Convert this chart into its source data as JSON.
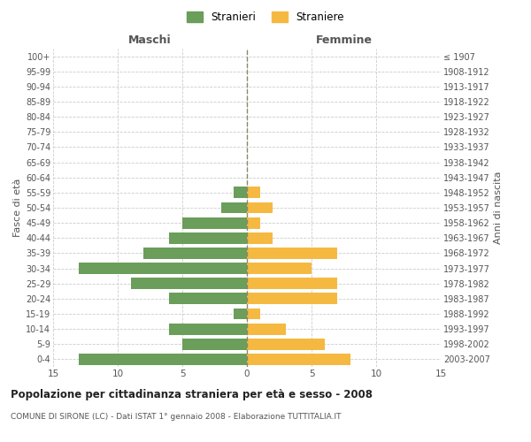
{
  "age_groups": [
    "0-4",
    "5-9",
    "10-14",
    "15-19",
    "20-24",
    "25-29",
    "30-34",
    "35-39",
    "40-44",
    "45-49",
    "50-54",
    "55-59",
    "60-64",
    "65-69",
    "70-74",
    "75-79",
    "80-84",
    "85-89",
    "90-94",
    "95-99",
    "100+"
  ],
  "birth_years": [
    "2003-2007",
    "1998-2002",
    "1993-1997",
    "1988-1992",
    "1983-1987",
    "1978-1982",
    "1973-1977",
    "1968-1972",
    "1963-1967",
    "1958-1962",
    "1953-1957",
    "1948-1952",
    "1943-1947",
    "1938-1942",
    "1933-1937",
    "1928-1932",
    "1923-1927",
    "1918-1922",
    "1913-1917",
    "1908-1912",
    "≤ 1907"
  ],
  "maschi": [
    13,
    5,
    6,
    1,
    6,
    9,
    13,
    8,
    6,
    5,
    2,
    1,
    0,
    0,
    0,
    0,
    0,
    0,
    0,
    0,
    0
  ],
  "femmine": [
    8,
    6,
    3,
    1,
    7,
    7,
    5,
    7,
    2,
    1,
    2,
    1,
    0,
    0,
    0,
    0,
    0,
    0,
    0,
    0,
    0
  ],
  "maschi_color": "#6a9e5a",
  "femmine_color": "#f5b942",
  "title": "Popolazione per cittadinanza straniera per età e sesso - 2008",
  "subtitle": "COMUNE DI SIRONE (LC) - Dati ISTAT 1° gennaio 2008 - Elaborazione TUTTITALIA.IT",
  "xlabel_left": "Maschi",
  "xlabel_right": "Femmine",
  "ylabel_left": "Fasce di età",
  "ylabel_right": "Anni di nascita",
  "legend_maschi": "Stranieri",
  "legend_femmine": "Straniere",
  "xlim": 15,
  "bg_color": "#ffffff",
  "grid_color": "#cccccc",
  "bar_height": 0.75
}
